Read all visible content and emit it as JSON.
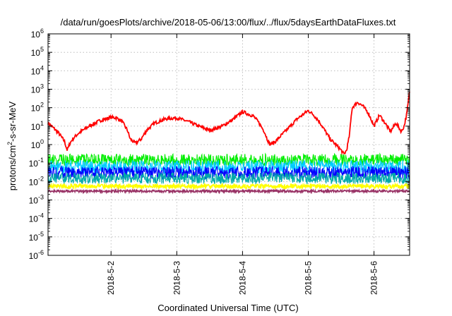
{
  "chart_data": {
    "type": "line",
    "title": "/data/run/goesPlots/archive/2018-05-06/13:00/flux/../flux/5daysEarthDataFluxes.txt",
    "xlabel": "Coordinated Universal Time (UTC)",
    "ylabel": "protons/cm²-s-sr-MeV",
    "ylabel_parts": {
      "pre": "protons/cm",
      "sup": "2",
      "post": "-s-sr-MeV"
    },
    "y_scale": "log",
    "ylim": [
      1e-06,
      1000000.0
    ],
    "y_ticks": [
      {
        "value": -6,
        "base": "10",
        "exp": "-6"
      },
      {
        "value": -5,
        "base": "10",
        "exp": "-5"
      },
      {
        "value": -4,
        "base": "10",
        "exp": "-4"
      },
      {
        "value": -3,
        "base": "10",
        "exp": "-3"
      },
      {
        "value": -2,
        "base": "10",
        "exp": "-2"
      },
      {
        "value": -1,
        "base": "10",
        "exp": "-1"
      },
      {
        "value": 0,
        "base": "10",
        "exp": "0"
      },
      {
        "value": 1,
        "base": "10",
        "exp": "1"
      },
      {
        "value": 2,
        "base": "10",
        "exp": "2"
      },
      {
        "value": 3,
        "base": "10",
        "exp": "3"
      },
      {
        "value": 4,
        "base": "10",
        "exp": "4"
      },
      {
        "value": 5,
        "base": "10",
        "exp": "5"
      },
      {
        "value": 6,
        "base": "10",
        "exp": "6"
      }
    ],
    "xlim": [
      "2018-05-01 01:00",
      "2018-05-06 13:00"
    ],
    "x_ticks": [
      "2018-5-2",
      "2018-5-3",
      "2018-5-4",
      "2018-5-5",
      "2018-5-6"
    ],
    "grid": true,
    "series": [
      {
        "color": "#ff0000",
        "x": [
          "2018-05-01 01:00",
          "2018-05-01 03:00",
          "2018-05-01 05:00",
          "2018-05-01 07:00",
          "2018-05-01 08:00",
          "2018-05-01 09:00",
          "2018-05-01 10:00",
          "2018-05-01 12:00",
          "2018-05-01 16:00",
          "2018-05-01 20:00",
          "2018-05-02 00:00",
          "2018-05-02 02:00",
          "2018-05-02 04:00",
          "2018-05-02 06:00",
          "2018-05-02 07:00",
          "2018-05-02 08:00",
          "2018-05-02 09:00",
          "2018-05-02 11:00",
          "2018-05-02 13:00",
          "2018-05-02 16:00",
          "2018-05-02 20:00",
          "2018-05-03 00:00",
          "2018-05-03 04:00",
          "2018-05-03 08:00",
          "2018-05-03 12:00",
          "2018-05-03 16:00",
          "2018-05-03 20:00",
          "2018-05-04 00:00",
          "2018-05-04 04:00",
          "2018-05-04 06:00",
          "2018-05-04 08:00",
          "2018-05-04 09:00",
          "2018-05-04 10:00",
          "2018-05-04 12:00",
          "2018-05-04 16:00",
          "2018-05-04 20:00",
          "2018-05-05 00:00",
          "2018-05-05 02:00",
          "2018-05-05 04:00",
          "2018-05-05 06:00",
          "2018-05-05 08:00",
          "2018-05-05 10:00",
          "2018-05-05 12:00",
          "2018-05-05 13:00",
          "2018-05-05 14:00",
          "2018-05-05 15:00",
          "2018-05-05 16:00",
          "2018-05-05 18:00",
          "2018-05-05 20:00",
          "2018-05-05 22:00",
          "2018-05-06 00:00",
          "2018-05-06 02:00",
          "2018-05-06 04:00",
          "2018-05-06 06:00",
          "2018-05-06 08:00",
          "2018-05-06 10:00",
          "2018-05-06 11:00",
          "2018-05-06 12:00",
          "2018-05-06 13:00"
        ],
        "values": [
          15,
          8,
          4,
          1.5,
          0.5,
          1.2,
          2,
          4,
          10,
          20,
          30,
          28,
          18,
          6,
          2,
          1.5,
          1.2,
          2,
          6,
          15,
          25,
          28,
          18,
          10,
          6,
          9,
          20,
          60,
          35,
          15,
          5,
          2,
          1,
          1.5,
          6,
          25,
          70,
          40,
          18,
          6,
          2,
          1,
          0.5,
          0.3,
          0.5,
          3,
          100,
          200,
          120,
          50,
          10,
          40,
          15,
          5,
          15,
          5,
          10,
          50,
          800
        ]
      },
      {
        "color": "#00ee00",
        "x": [
          "2018-05-01 01:00",
          "2018-05-02 01:00",
          "2018-05-03 01:00",
          "2018-05-04 01:00",
          "2018-05-05 01:00",
          "2018-05-06 01:00",
          "2018-05-06 13:00"
        ],
        "values": [
          0.15,
          0.15,
          0.15,
          0.15,
          0.15,
          0.15,
          0.15
        ]
      },
      {
        "color": "#00ccff",
        "x": [
          "2018-05-01 01:00",
          "2018-05-02 01:00",
          "2018-05-03 01:00",
          "2018-05-04 01:00",
          "2018-05-05 01:00",
          "2018-05-06 01:00",
          "2018-05-06 13:00"
        ],
        "values": [
          0.06,
          0.06,
          0.06,
          0.06,
          0.06,
          0.06,
          0.06
        ]
      },
      {
        "color": "#0000ff",
        "x": [
          "2018-05-01 01:00",
          "2018-05-02 01:00",
          "2018-05-03 01:00",
          "2018-05-04 01:00",
          "2018-05-05 01:00",
          "2018-05-06 01:00",
          "2018-05-06 13:00"
        ],
        "values": [
          0.03,
          0.03,
          0.03,
          0.03,
          0.03,
          0.03,
          0.03
        ]
      },
      {
        "color": "#00aaaa",
        "x": [
          "2018-05-01 01:00",
          "2018-05-02 01:00",
          "2018-05-03 01:00",
          "2018-05-04 01:00",
          "2018-05-05 01:00",
          "2018-05-06 01:00",
          "2018-05-06 13:00"
        ],
        "values": [
          0.015,
          0.015,
          0.015,
          0.015,
          0.015,
          0.015,
          0.015
        ]
      },
      {
        "color": "#ffff00",
        "x": [
          "2018-05-01 01:00",
          "2018-05-02 01:00",
          "2018-05-03 01:00",
          "2018-05-04 01:00",
          "2018-05-05 01:00",
          "2018-05-06 01:00",
          "2018-05-06 13:00"
        ],
        "values": [
          0.0055,
          0.0055,
          0.0055,
          0.0055,
          0.0055,
          0.0055,
          0.0055
        ]
      },
      {
        "color": "#993366",
        "x": [
          "2018-05-01 01:00",
          "2018-05-02 01:00",
          "2018-05-03 01:00",
          "2018-05-04 01:00",
          "2018-05-05 01:00",
          "2018-05-06 01:00",
          "2018-05-06 13:00"
        ],
        "values": [
          0.003,
          0.003,
          0.003,
          0.003,
          0.003,
          0.003,
          0.003
        ]
      }
    ]
  }
}
